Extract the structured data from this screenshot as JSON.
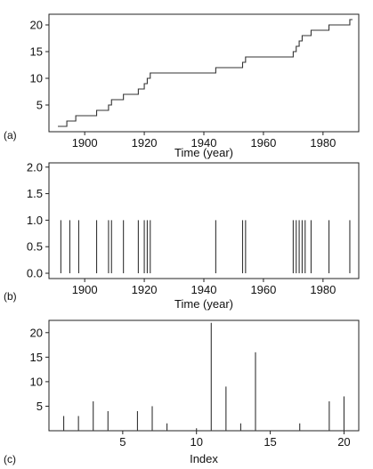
{
  "chart_data": [
    {
      "panel": "(a)",
      "type": "line",
      "step": true,
      "xlabel": "Time (year)",
      "ylabel": "",
      "xlim": [
        1888,
        1992
      ],
      "ylim": [
        0,
        22
      ],
      "xticks": [
        1900,
        1920,
        1940,
        1960,
        1980
      ],
      "yticks": [
        5,
        10,
        15,
        20
      ],
      "grid": false,
      "x": [
        1891,
        1894,
        1897,
        1898,
        1904,
        1908,
        1909,
        1913,
        1918,
        1920,
        1921,
        1922,
        1944,
        1953,
        1954,
        1970,
        1971,
        1972,
        1973,
        1974,
        1976,
        1982,
        1989
      ],
      "values": [
        1,
        2,
        3,
        3,
        4,
        5,
        6,
        7,
        8,
        9,
        10,
        11,
        12,
        13,
        14,
        15,
        16,
        17,
        18,
        18,
        19,
        20,
        21
      ]
    },
    {
      "panel": "(b)",
      "type": "bar",
      "style": "spikes",
      "xlabel": "Time (year)",
      "ylabel": "",
      "xlim": [
        1888,
        1992
      ],
      "ylim": [
        -0.1,
        2.08
      ],
      "xticks": [
        1900,
        1920,
        1940,
        1960,
        1980
      ],
      "yticks": [
        0.0,
        0.5,
        1.0,
        1.5,
        2.0
      ],
      "yticklabels": [
        "0.0",
        "0.5",
        "1.0",
        "1.5",
        "2.0"
      ],
      "grid": false,
      "x": [
        1892,
        1895,
        1898,
        1904,
        1908,
        1909,
        1913,
        1918,
        1920,
        1921,
        1922,
        1944,
        1953,
        1954,
        1970,
        1971,
        1972,
        1973,
        1974,
        1976,
        1982,
        1989
      ],
      "values": [
        1,
        1,
        1,
        1,
        1,
        1,
        1,
        1,
        1,
        1,
        1,
        1,
        1,
        1,
        1,
        1,
        1,
        1,
        1,
        1,
        1,
        1
      ]
    },
    {
      "panel": "(c)",
      "type": "bar",
      "style": "spikes",
      "xlabel": "Index",
      "ylabel": "",
      "xlim": [
        0,
        21
      ],
      "ylim": [
        0,
        22.5
      ],
      "xticks": [
        5,
        10,
        15,
        20
      ],
      "yticks": [
        5,
        10,
        15,
        20
      ],
      "grid": false,
      "x": [
        1,
        2,
        3,
        4,
        6,
        7,
        8,
        10,
        11,
        12,
        13,
        14,
        17,
        19,
        20
      ],
      "values": [
        3,
        3,
        6,
        4,
        4,
        5,
        1.5,
        0.5,
        22,
        9,
        1.5,
        16,
        1.5,
        6,
        7
      ]
    }
  ]
}
